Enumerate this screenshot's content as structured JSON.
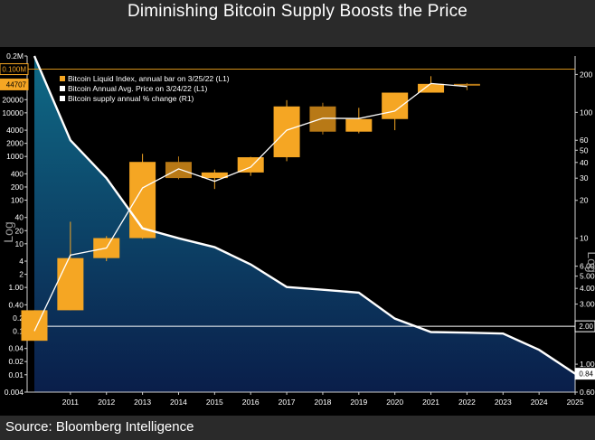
{
  "title": "Diminishing Bitcoin Supply Boosts the Price",
  "source": "Source: Bloomberg Intelligence",
  "colors": {
    "background": "#000000",
    "page": "#2a2a2a",
    "candle": "#f5a623",
    "candle_dim": "#b87916",
    "price_line": "#ffffff",
    "supply_fill_top": "#0f6a86",
    "supply_fill_bottom": "#0a1e4a",
    "supply_line": "#ffffff",
    "ref_line_orange": "#d4901a",
    "ref_line_white": "#ffffff"
  },
  "chart_data": {
    "type": "candlestick+line+area",
    "x_tick_labels": [
      "2011",
      "2012",
      "2013",
      "2014",
      "2015",
      "2016",
      "2017",
      "2018",
      "2019",
      "2020",
      "2021",
      "2022",
      "2023",
      "2024",
      "2025"
    ],
    "left_axis": {
      "title": "Log",
      "scale": "log",
      "range": [
        0.004,
        200000
      ],
      "tick_labels": [
        "0.2M",
        "20000",
        "10000",
        "4000",
        "2000",
        "1000",
        "400",
        "200",
        "100",
        "40",
        "20",
        "10",
        "4",
        "2",
        "1.00",
        "0.40",
        "0.2",
        "0.1",
        "0.04",
        "0.02",
        "0.01",
        "0.004"
      ],
      "tick_values": [
        200000,
        20000,
        10000,
        4000,
        2000,
        1000,
        400,
        200,
        100,
        40,
        20,
        10,
        4,
        2,
        1,
        0.4,
        0.2,
        0.1,
        0.04,
        0.02,
        0.01,
        0.004
      ],
      "markers": [
        {
          "label": "0.100M",
          "value": 100000,
          "style": "orange"
        },
        {
          "label": "44707",
          "value": 44707,
          "style": "orange-fill"
        }
      ]
    },
    "right_axis": {
      "title": "Log",
      "scale": "log",
      "range": [
        0.6,
        280
      ],
      "tick_labels": [
        "200",
        "100",
        "60",
        "50",
        "40",
        "30",
        "20",
        "10",
        "6.00",
        "5.00",
        "4.00",
        "3.00",
        "1.00",
        "0.60"
      ],
      "tick_values": [
        200,
        100,
        60,
        50,
        40,
        30,
        20,
        10,
        6,
        5,
        4,
        3,
        1,
        0.6
      ],
      "markers": [
        {
          "label": "2.00",
          "value": 2.0,
          "style": "white"
        },
        {
          "label": "0.84",
          "value": 0.84,
          "style": "white-fill"
        }
      ]
    },
    "legend": [
      {
        "name": "Bitcoin Liquid Index, annual bar on 3/25/22 (L1)",
        "color": "#f5a623"
      },
      {
        "name": "Bitcoin Annual Avg. Price on 3/24/22 (L1)",
        "color": "#ffffff"
      },
      {
        "name": "Bitcoin supply annual % change (R1)",
        "color": "#ffffff"
      }
    ],
    "legend_position": "top-left",
    "candles": [
      {
        "x": 2010,
        "open": 0.06,
        "close": 0.3,
        "high": 0.3,
        "low": 0.06
      },
      {
        "x": 2011,
        "open": 0.3,
        "close": 4.7,
        "high": 32,
        "low": 0.3
      },
      {
        "x": 2012,
        "open": 4.7,
        "close": 13.5,
        "high": 15,
        "low": 4.0
      },
      {
        "x": 2013,
        "open": 13.5,
        "close": 750,
        "high": 1150,
        "low": 13
      },
      {
        "x": 2014,
        "open": 750,
        "close": 320,
        "high": 1000,
        "low": 300
      },
      {
        "x": 2015,
        "open": 320,
        "close": 430,
        "high": 500,
        "low": 180
      },
      {
        "x": 2016,
        "open": 430,
        "close": 960,
        "high": 980,
        "low": 360
      },
      {
        "x": 2017,
        "open": 960,
        "close": 14000,
        "high": 19500,
        "low": 780
      },
      {
        "x": 2018,
        "open": 14000,
        "close": 3700,
        "high": 17000,
        "low": 3200
      },
      {
        "x": 2019,
        "open": 3700,
        "close": 7200,
        "high": 13000,
        "low": 3400
      },
      {
        "x": 2020,
        "open": 7200,
        "close": 29000,
        "high": 29000,
        "low": 4000
      },
      {
        "x": 2021,
        "open": 29000,
        "close": 46000,
        "high": 69000,
        "low": 29000
      },
      {
        "x": 2022,
        "open": 46000,
        "close": 44707,
        "high": 48000,
        "low": 33000
      }
    ],
    "avg_price": {
      "name": "Bitcoin Annual Avg. Price on 3/24/22 (L1)",
      "x": [
        2010,
        2011,
        2012,
        2013,
        2014,
        2015,
        2016,
        2017,
        2018,
        2019,
        2020,
        2021,
        2022
      ],
      "y": [
        0.1,
        5.5,
        8,
        190,
        520,
        270,
        570,
        4000,
        7500,
        7400,
        11000,
        47000,
        40000
      ]
    },
    "supply_change": {
      "name": "Bitcoin supply annual % change (R1)",
      "x": [
        2010,
        2011,
        2012,
        2013,
        2014,
        2015,
        2016,
        2017,
        2018,
        2019,
        2020,
        2021,
        2022,
        2023,
        2024,
        2025
      ],
      "y": [
        280,
        60,
        30,
        12,
        10,
        8.5,
        6.2,
        4.1,
        3.9,
        3.7,
        2.3,
        1.8,
        1.78,
        1.75,
        1.3,
        0.84
      ]
    },
    "reference_lines": [
      {
        "axis": "left",
        "value": 100000,
        "color": "#d4901a"
      },
      {
        "axis": "right",
        "value": 2.0,
        "color": "#ffffff"
      }
    ],
    "grid": false
  }
}
